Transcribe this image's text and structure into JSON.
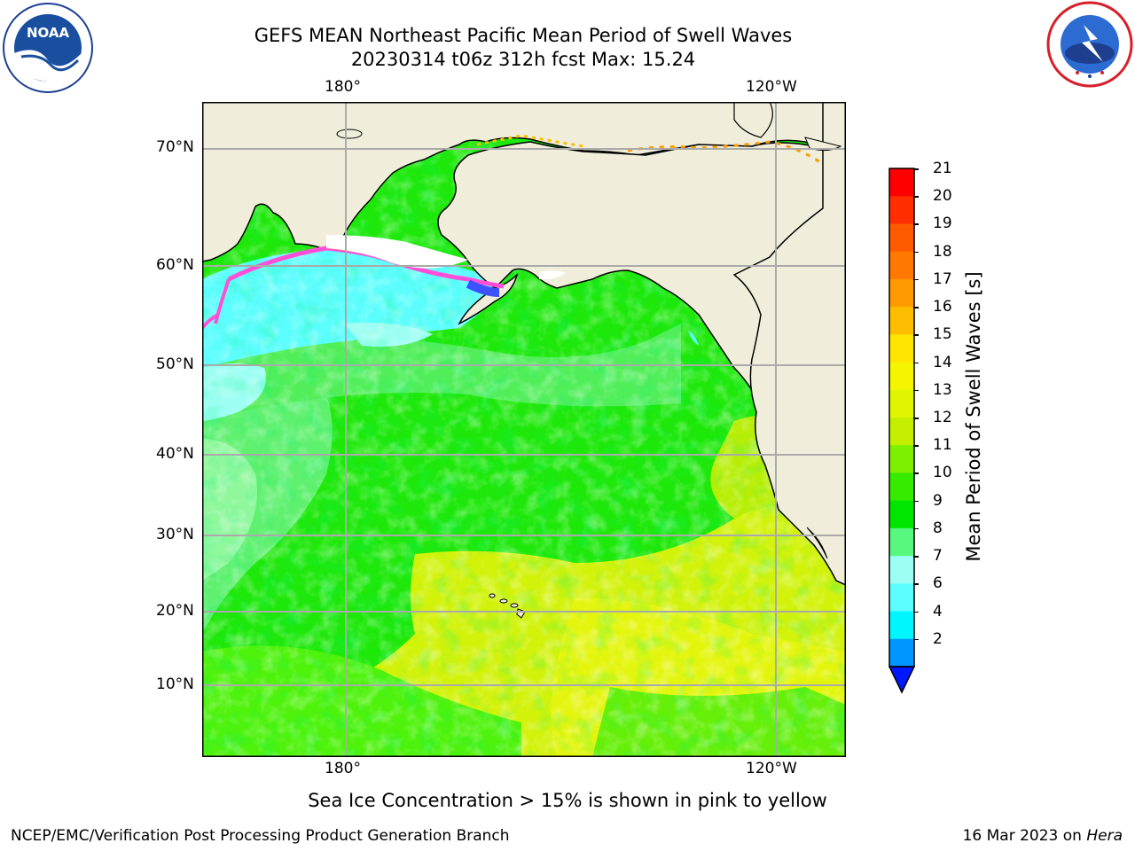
{
  "header": {
    "title_line1": "GEFS MEAN Northeast Pacific Mean Period of Swell Waves",
    "title_line2": "20230314 t06z 312h fcst   Max: 15.24"
  },
  "logos": {
    "left_text": "NOAA",
    "left_ring": "NATIONAL OCEANIC AND ATMOSPHERIC ADMINISTRATION · U.S. DEPARTMENT OF COMMERCE",
    "right_ring": "NATIONAL WEATHER SERVICE"
  },
  "map": {
    "lon_labels_top": [
      "180°",
      "120°W"
    ],
    "lon_labels_bottom": [
      "180°",
      "120°W"
    ],
    "lat_labels": [
      "70°N",
      "60°N",
      "50°N",
      "40°N",
      "30°N",
      "20°N",
      "10°N"
    ]
  },
  "colorbar": {
    "label": "Mean Period of Swell Waves [s]",
    "ticks": [
      "21",
      "20",
      "19",
      "18",
      "17",
      "16",
      "15",
      "14",
      "13",
      "12",
      "11",
      "10",
      "9",
      "8",
      "7",
      "6",
      "4",
      "2"
    ],
    "colors": [
      "#ff0000",
      "#ff2d00",
      "#ff5a00",
      "#ff7800",
      "#ff9a00",
      "#ffbd00",
      "#ffe600",
      "#f5f500",
      "#e0f500",
      "#c4f000",
      "#7df000",
      "#36eb00",
      "#00e600",
      "#58f77d",
      "#9dfff3",
      "#5cfdfd",
      "#00f6ff",
      "#0096ff"
    ],
    "extend_color": "#0018ff"
  },
  "caption": "Sea Ice Concentration > 15% is shown in pink to yellow",
  "footer": {
    "left": "NCEP/EMC/Verification Post Processing Product Generation Branch",
    "right_date": "16 Mar 2023 on",
    "right_host": "Hera"
  }
}
